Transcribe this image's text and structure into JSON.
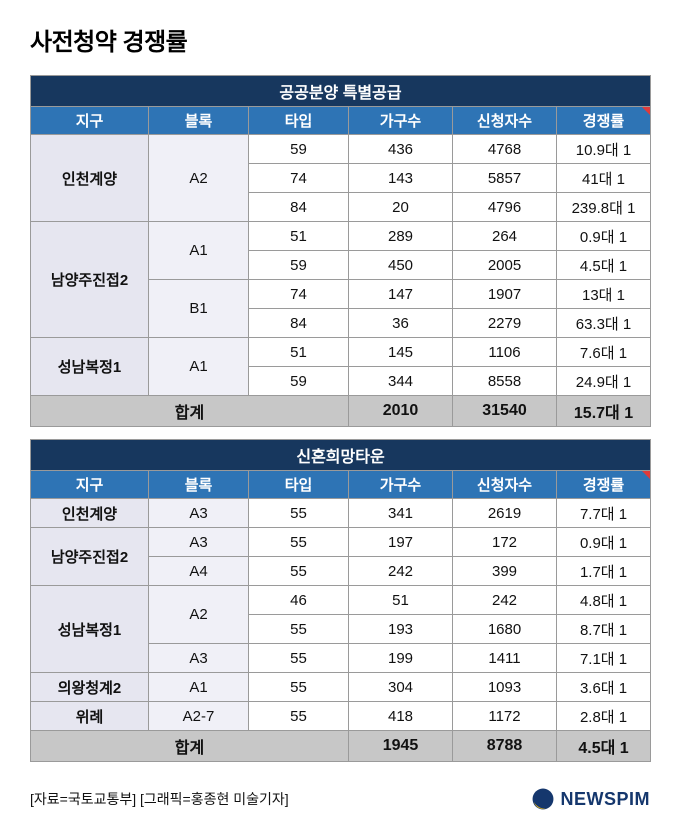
{
  "page_title": "사전청약 경쟁률",
  "footer": {
    "source": "[자료=국토교통부] [그래픽=홍종현 미술기자]",
    "logo_text": "NEWSPIM"
  },
  "colors": {
    "title_band": "#17375e",
    "column_header": "#2e74b5",
    "district_cell": "#e6e6f0",
    "block_cell": "#f0f0f7",
    "total_row": "#c7c7c7",
    "border": "#9a9a9a",
    "marker_red": "#e03a3a",
    "logo_navy": "#15376d",
    "logo_yellow": "#ffc20e"
  },
  "chart_data": [
    {
      "type": "table",
      "title": "공공분양 특별공급",
      "columns": [
        "지구",
        "블록",
        "타입",
        "가구수",
        "신청자수",
        "경쟁률"
      ],
      "groups": [
        {
          "district": "인천계양",
          "blocks": [
            {
              "name": "A2",
              "units": [
                {
                  "type": "59",
                  "households": "436",
                  "applicants": "4768",
                  "rate": "10.9대 1"
                },
                {
                  "type": "74",
                  "households": "143",
                  "applicants": "5857",
                  "rate": "41대 1"
                },
                {
                  "type": "84",
                  "households": "20",
                  "applicants": "4796",
                  "rate": "239.8대 1"
                }
              ]
            }
          ]
        },
        {
          "district": "남양주진접2",
          "blocks": [
            {
              "name": "A1",
              "units": [
                {
                  "type": "51",
                  "households": "289",
                  "applicants": "264",
                  "rate": "0.9대 1"
                },
                {
                  "type": "59",
                  "households": "450",
                  "applicants": "2005",
                  "rate": "4.5대 1"
                }
              ]
            },
            {
              "name": "B1",
              "units": [
                {
                  "type": "74",
                  "households": "147",
                  "applicants": "1907",
                  "rate": "13대 1"
                },
                {
                  "type": "84",
                  "households": "36",
                  "applicants": "2279",
                  "rate": "63.3대 1"
                }
              ]
            }
          ]
        },
        {
          "district": "성남복정1",
          "blocks": [
            {
              "name": "A1",
              "units": [
                {
                  "type": "51",
                  "households": "145",
                  "applicants": "1106",
                  "rate": "7.6대 1"
                },
                {
                  "type": "59",
                  "households": "344",
                  "applicants": "8558",
                  "rate": "24.9대 1"
                }
              ]
            }
          ]
        }
      ],
      "total": {
        "label": "합계",
        "households": "2010",
        "applicants": "31540",
        "rate": "15.7대 1"
      }
    },
    {
      "type": "table",
      "title": "신혼희망타운",
      "columns": [
        "지구",
        "블록",
        "타입",
        "가구수",
        "신청자수",
        "경쟁률"
      ],
      "groups": [
        {
          "district": "인천계양",
          "blocks": [
            {
              "name": "A3",
              "units": [
                {
                  "type": "55",
                  "households": "341",
                  "applicants": "2619",
                  "rate": "7.7대 1"
                }
              ]
            }
          ]
        },
        {
          "district": "남양주진접2",
          "blocks": [
            {
              "name": "A3",
              "units": [
                {
                  "type": "55",
                  "households": "197",
                  "applicants": "172",
                  "rate": "0.9대 1"
                }
              ]
            },
            {
              "name": "A4",
              "units": [
                {
                  "type": "55",
                  "households": "242",
                  "applicants": "399",
                  "rate": "1.7대 1"
                }
              ]
            }
          ]
        },
        {
          "district": "성남복정1",
          "blocks": [
            {
              "name": "A2",
              "units": [
                {
                  "type": "46",
                  "households": "51",
                  "applicants": "242",
                  "rate": "4.8대 1"
                },
                {
                  "type": "55",
                  "households": "193",
                  "applicants": "1680",
                  "rate": "8.7대 1"
                }
              ]
            },
            {
              "name": "A3",
              "units": [
                {
                  "type": "55",
                  "households": "199",
                  "applicants": "1411",
                  "rate": "7.1대 1"
                }
              ]
            }
          ]
        },
        {
          "district": "의왕청계2",
          "blocks": [
            {
              "name": "A1",
              "units": [
                {
                  "type": "55",
                  "households": "304",
                  "applicants": "1093",
                  "rate": "3.6대 1"
                }
              ]
            }
          ]
        },
        {
          "district": "위례",
          "blocks": [
            {
              "name": "A2-7",
              "units": [
                {
                  "type": "55",
                  "households": "418",
                  "applicants": "1172",
                  "rate": "2.8대 1"
                }
              ]
            }
          ]
        }
      ],
      "total": {
        "label": "합계",
        "households": "1945",
        "applicants": "8788",
        "rate": "4.5대 1"
      }
    }
  ]
}
